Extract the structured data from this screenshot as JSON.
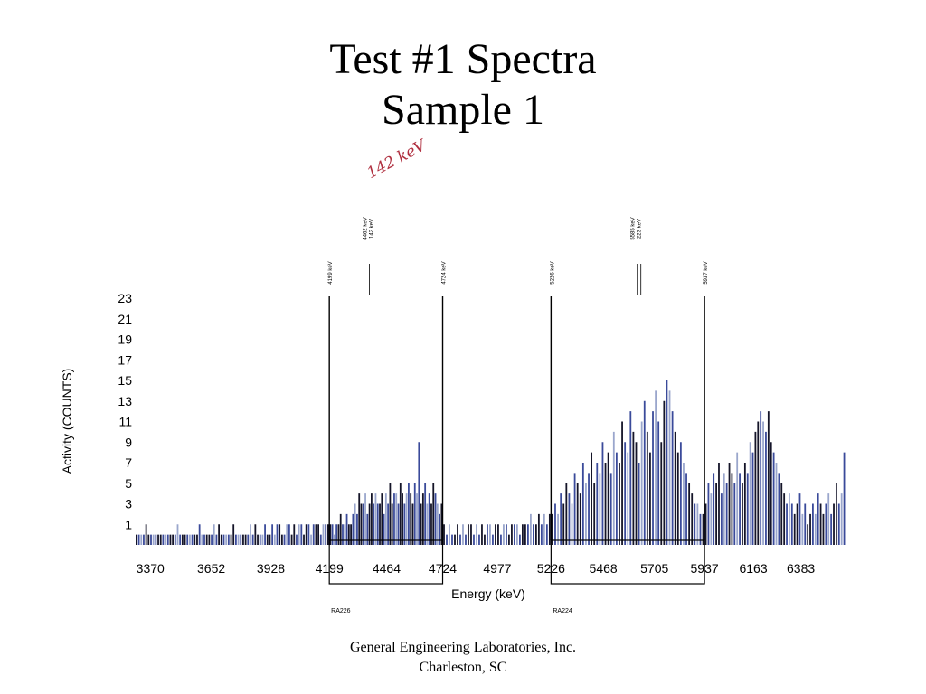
{
  "title": {
    "line1": "Test #1 Spectra",
    "line2": "Sample 1"
  },
  "annotation": "142 keV",
  "footer": {
    "line1": "General Engineering Laboratories, Inc.",
    "line2": "Charleston, SC"
  },
  "colors": {
    "bar_dark": "#141428",
    "bar_blue": "#3a4a9a",
    "bar_light": "#9aa6cc",
    "marker": "#000000"
  },
  "chart_data": {
    "type": "bar",
    "xlabel": "Energy (keV)",
    "ylabel": "Activity (COUNTS)",
    "xlim": [
      3260,
      6590
    ],
    "ylim": [
      -1,
      23
    ],
    "x_ticks": [
      3370,
      3652,
      3928,
      4199,
      4464,
      4724,
      4977,
      5226,
      5468,
      5705,
      5937,
      6163,
      6383
    ],
    "y_ticks": [
      1,
      3,
      5,
      7,
      9,
      11,
      13,
      15,
      17,
      19,
      21,
      23
    ],
    "markers": [
      {
        "x": 4199,
        "label": "4199 keV"
      },
      {
        "x": 4724,
        "label": "4724 keV"
      },
      {
        "x": 5226,
        "label": "5226 keV"
      },
      {
        "x": 5937,
        "label": "5937 keV"
      }
    ],
    "peak_labels": [
      {
        "x": 4464,
        "lines": [
          "4462 keV",
          "142 keV"
        ]
      },
      {
        "x": 5705,
        "lines": [
          "5585 keV",
          "223 keV"
        ]
      }
    ],
    "regions": [
      {
        "x1": 4199,
        "x2": 4724,
        "label": "RA226"
      },
      {
        "x1": 5226,
        "x2": 5937,
        "label": "RA224"
      }
    ],
    "spectrum": [
      {
        "from": 3300,
        "to": 4199,
        "values": [
          0,
          0,
          0,
          0,
          1,
          0,
          0,
          0,
          0,
          0,
          0,
          0,
          0,
          0,
          0,
          0,
          0,
          1,
          0,
          0,
          0,
          0,
          0,
          0,
          0,
          0,
          1,
          0,
          0,
          0,
          0,
          0,
          1,
          0,
          1,
          0,
          0,
          0,
          0,
          0,
          1,
          0,
          0,
          0,
          0,
          0,
          0,
          1,
          0,
          1,
          0,
          0,
          0,
          1,
          0,
          0,
          1,
          0,
          1,
          1,
          0,
          0,
          1,
          1,
          0,
          1,
          0,
          1,
          1,
          0,
          1,
          1,
          0,
          1,
          1,
          1,
          0,
          1,
          1,
          1
        ]
      },
      {
        "from": 4199,
        "to": 4724,
        "values": [
          1,
          1,
          0,
          1,
          1,
          2,
          1,
          1,
          2,
          1,
          1,
          2,
          3,
          2,
          4,
          3,
          3,
          4,
          2,
          3,
          4,
          3,
          4,
          3,
          3,
          4,
          2,
          4,
          3,
          5,
          3,
          4,
          4,
          3,
          5,
          4,
          3,
          4,
          5,
          4,
          3,
          5,
          4,
          9,
          3,
          4,
          5,
          3,
          4,
          3,
          5,
          4,
          3,
          2,
          3
        ]
      },
      {
        "from": 4724,
        "to": 5226,
        "values": [
          1,
          0,
          1,
          0,
          0,
          1,
          0,
          1,
          0,
          1,
          1,
          0,
          1,
          0,
          1,
          0,
          1,
          1,
          0,
          1,
          1,
          0,
          1,
          1,
          0,
          1,
          1,
          1,
          0,
          1,
          1,
          1,
          2,
          1,
          1,
          2,
          1,
          2,
          1,
          2
        ]
      },
      {
        "from": 5226,
        "to": 5937,
        "values": [
          2,
          3,
          2,
          4,
          3,
          5,
          4,
          3,
          6,
          5,
          4,
          7,
          5,
          6,
          8,
          5,
          7,
          6,
          9,
          7,
          8,
          6,
          10,
          8,
          7,
          11,
          9,
          8,
          12,
          10,
          9,
          7,
          11,
          13,
          10,
          8,
          12,
          14,
          11,
          9,
          13,
          15,
          14,
          12,
          10,
          8,
          9,
          7,
          6,
          5,
          4,
          3,
          3,
          2,
          2
        ]
      },
      {
        "from": 5937,
        "to": 6590,
        "values": [
          3,
          5,
          4,
          6,
          5,
          7,
          4,
          6,
          5,
          7,
          6,
          5,
          8,
          6,
          5,
          7,
          6,
          9,
          8,
          10,
          11,
          12,
          11,
          10,
          12,
          9,
          8,
          7,
          6,
          5,
          4,
          3,
          4,
          3,
          2,
          3,
          4,
          2,
          3,
          1,
          2,
          3,
          2,
          4,
          3,
          2,
          3,
          4,
          2,
          3,
          5,
          3,
          4,
          8
        ]
      }
    ]
  }
}
